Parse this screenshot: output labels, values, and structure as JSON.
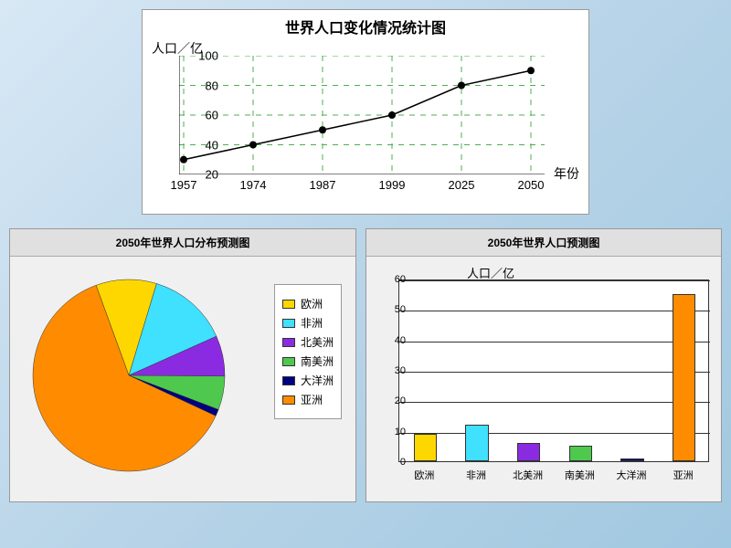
{
  "line_chart": {
    "type": "line",
    "title": "世界人口变化情况统计图",
    "ylabel": "人口／亿",
    "xlabel": "年份",
    "categories": [
      "1957",
      "1974",
      "1987",
      "1999",
      "2025",
      "2050"
    ],
    "values": [
      30,
      40,
      50,
      60,
      80,
      90
    ],
    "ylim": [
      20,
      100
    ],
    "ytick_step": 20,
    "yticks": [
      20,
      40,
      60,
      80,
      100
    ],
    "grid_color": "#4caf50",
    "line_color": "#000000",
    "marker_color": "#000000",
    "marker_size": 4,
    "background": "#ffffff",
    "title_fontsize": 16
  },
  "pie_chart": {
    "type": "pie",
    "title": "2050年世界人口分布预测图",
    "slices": [
      {
        "label": "欧洲",
        "value": 9,
        "color": "#ffd700"
      },
      {
        "label": "非洲",
        "value": 12,
        "color": "#40e0ff"
      },
      {
        "label": "北美洲",
        "value": 6,
        "color": "#8a2be2"
      },
      {
        "label": "南美洲",
        "value": 5,
        "color": "#4ec94e"
      },
      {
        "label": "大洋洲",
        "value": 1,
        "color": "#000080"
      },
      {
        "label": "亚洲",
        "value": 55,
        "color": "#ff8c00"
      }
    ],
    "start_angle": -110,
    "background": "#f0f0f0",
    "border_color": "#333333"
  },
  "bar_chart": {
    "type": "bar",
    "title": "2050年世界人口预测图",
    "ylabel": "人口／亿",
    "categories": [
      "欧洲",
      "非洲",
      "北美洲",
      "南美洲",
      "大洋洲",
      "亚洲"
    ],
    "values": [
      9,
      12,
      6,
      5,
      1,
      55
    ],
    "colors": [
      "#ffd700",
      "#40e0ff",
      "#8a2be2",
      "#4ec94e",
      "#000080",
      "#ff8c00"
    ],
    "ylim": [
      0,
      60
    ],
    "ytick_step": 10,
    "yticks": [
      0,
      10,
      20,
      30,
      40,
      50,
      60
    ],
    "grid_color": "#333333",
    "bar_width": 0.45,
    "background": "#ffffff",
    "border_color": "#333333"
  }
}
